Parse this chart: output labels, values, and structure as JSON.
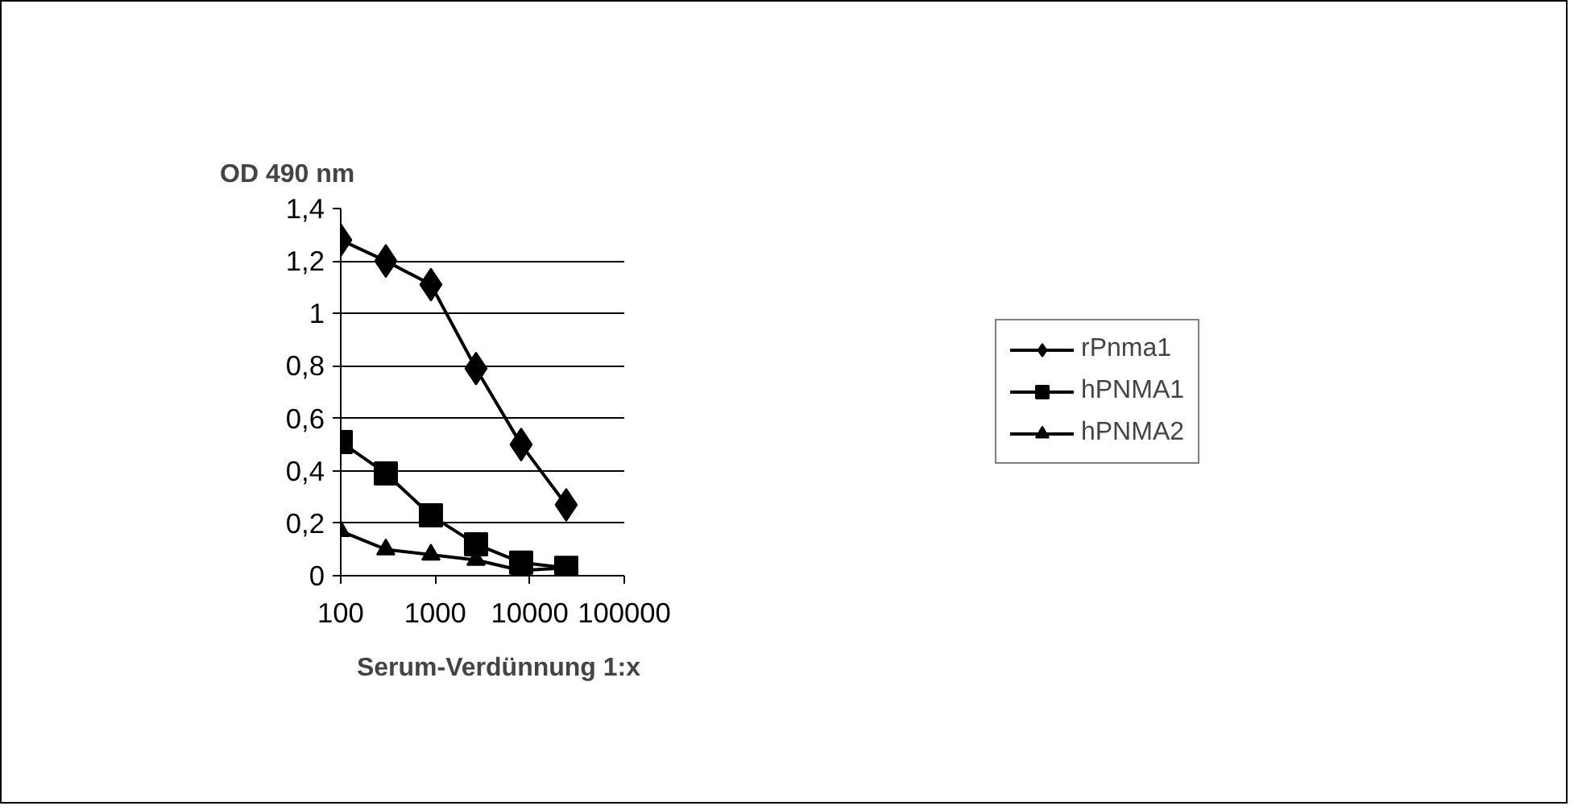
{
  "chart_data": {
    "type": "line",
    "ylabel": "OD 490 nm",
    "xlabel": "Serum-Verdünnung 1:x",
    "log": "x",
    "x": [
      100,
      300,
      900,
      2700,
      8100,
      24300
    ],
    "series": [
      {
        "name": "rPnma1",
        "color": "#000000",
        "marker": "diamond",
        "values": [
          1.28,
          1.2,
          1.11,
          0.79,
          0.5,
          0.27
        ]
      },
      {
        "name": "hPNMA1",
        "color": "#000000",
        "marker": "square",
        "values": [
          0.51,
          0.39,
          0.23,
          0.12,
          0.05,
          0.03
        ]
      },
      {
        "name": "hPNMA2",
        "color": "#000000",
        "marker": "triangle",
        "values": [
          0.17,
          0.1,
          0.08,
          0.06,
          0.02,
          0.03
        ]
      }
    ],
    "xlim": [
      100,
      100000
    ],
    "xticks": [
      100,
      1000,
      10000,
      100000
    ],
    "ylim": [
      0,
      1.4
    ],
    "yticks": [
      0,
      {
        "value": 0.2,
        "label": "0,2"
      },
      {
        "value": 0.4,
        "label": "0,4"
      },
      {
        "value": 0.6,
        "label": "0,6"
      },
      {
        "value": 0.8,
        "label": "0,8"
      },
      1,
      {
        "value": 1.2,
        "label": "1,2"
      },
      {
        "value": 1.4,
        "label": "1,4"
      }
    ],
    "grid": "y",
    "legend": "right",
    "line_style": "solid"
  }
}
